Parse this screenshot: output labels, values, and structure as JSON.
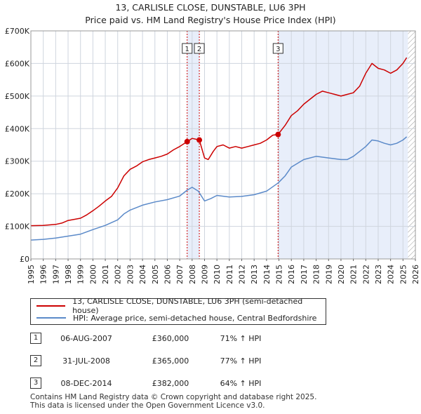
{
  "title": "13, CARLISLE CLOSE, DUNSTABLE, LU6 3PH",
  "subtitle": "Price paid vs. HM Land Registry's House Price Index (HPI)",
  "chart_data": {
    "type": "line",
    "ylim": [
      0,
      700000
    ],
    "xlim": [
      1995,
      2026
    ],
    "y_ticks": [
      {
        "value": 0,
        "label": "£0"
      },
      {
        "value": 100000,
        "label": "£100K"
      },
      {
        "value": 200000,
        "label": "£200K"
      },
      {
        "value": 300000,
        "label": "£300K"
      },
      {
        "value": 400000,
        "label": "£400K"
      },
      {
        "value": 500000,
        "label": "£500K"
      },
      {
        "value": 600000,
        "label": "£600K"
      },
      {
        "value": 700000,
        "label": "£700K"
      }
    ],
    "x_ticks": [
      "1995",
      "1996",
      "1997",
      "1998",
      "1999",
      "2000",
      "2001",
      "2002",
      "2003",
      "2004",
      "2005",
      "2006",
      "2007",
      "2008",
      "2009",
      "2010",
      "2011",
      "2012",
      "2013",
      "2014",
      "2015",
      "2016",
      "2017",
      "2018",
      "2019",
      "2020",
      "2021",
      "2022",
      "2023",
      "2024",
      "2025",
      "2026"
    ],
    "grid": true,
    "colors": {
      "property": "#cc0000",
      "hpi": "#5b8ac9",
      "shade": "#e8eefa",
      "vline": "#cc0000",
      "grid": "#cfd5de",
      "hatch": "#999999"
    },
    "shaded_ranges": [
      [
        2007.6,
        2008.58
      ],
      [
        2014.93,
        2025.4
      ]
    ],
    "hatched_from": 2025.4,
    "series": [
      {
        "name": "13, CARLISLE CLOSE, DUNSTABLE, LU6 3PH (semi-detached house)",
        "color": "#cc0000",
        "x": [
          1995.0,
          1996.0,
          1997.0,
          1997.5,
          1998.0,
          1999.0,
          1999.5,
          2000.0,
          2000.5,
          2001.0,
          2001.5,
          2002.0,
          2002.5,
          2003.0,
          2003.5,
          2004.0,
          2004.5,
          2005.0,
          2005.5,
          2006.0,
          2006.5,
          2007.0,
          2007.6,
          2008.0,
          2008.58,
          2009.0,
          2009.3,
          2009.7,
          2010.0,
          2010.5,
          2011.0,
          2011.5,
          2012.0,
          2012.5,
          2013.0,
          2013.5,
          2014.0,
          2014.5,
          2014.93,
          2015.5,
          2016.0,
          2016.5,
          2017.0,
          2017.5,
          2018.0,
          2018.5,
          2019.0,
          2019.5,
          2020.0,
          2020.5,
          2021.0,
          2021.5,
          2022.0,
          2022.5,
          2023.0,
          2023.5,
          2024.0,
          2024.5,
          2025.0,
          2025.3
        ],
        "y": [
          102000,
          103000,
          106000,
          110000,
          118000,
          125000,
          135000,
          148000,
          162000,
          178000,
          192000,
          218000,
          255000,
          275000,
          285000,
          298000,
          305000,
          310000,
          315000,
          322000,
          335000,
          345000,
          360000,
          370000,
          365000,
          310000,
          305000,
          330000,
          345000,
          350000,
          340000,
          345000,
          340000,
          345000,
          350000,
          355000,
          365000,
          380000,
          382000,
          410000,
          440000,
          455000,
          475000,
          490000,
          505000,
          515000,
          510000,
          505000,
          500000,
          505000,
          510000,
          530000,
          570000,
          600000,
          585000,
          580000,
          570000,
          580000,
          600000,
          618000
        ]
      },
      {
        "name": "HPI: Average price, semi-detached house, Central Bedfordshire",
        "color": "#5b8ac9",
        "x": [
          1995.0,
          1996.0,
          1997.0,
          1998.0,
          1999.0,
          2000.0,
          2001.0,
          2002.0,
          2002.5,
          2003.0,
          2004.0,
          2005.0,
          2006.0,
          2007.0,
          2007.6,
          2008.0,
          2008.5,
          2009.0,
          2009.5,
          2010.0,
          2011.0,
          2012.0,
          2013.0,
          2014.0,
          2014.93,
          2015.5,
          2016.0,
          2017.0,
          2018.0,
          2019.0,
          2020.0,
          2020.5,
          2021.0,
          2021.5,
          2022.0,
          2022.5,
          2023.0,
          2023.5,
          2024.0,
          2024.5,
          2025.0,
          2025.3
        ],
        "y": [
          58000,
          60000,
          64000,
          70000,
          76000,
          90000,
          103000,
          120000,
          138000,
          150000,
          165000,
          175000,
          182000,
          193000,
          211000,
          220000,
          208000,
          178000,
          185000,
          195000,
          190000,
          192000,
          197000,
          208000,
          233000,
          255000,
          282000,
          305000,
          315000,
          310000,
          305000,
          305000,
          315000,
          330000,
          345000,
          365000,
          362000,
          355000,
          350000,
          355000,
          365000,
          375000
        ]
      }
    ],
    "sales": [
      {
        "label": "1",
        "x": 2007.6,
        "y": 360000
      },
      {
        "label": "2",
        "x": 2008.58,
        "y": 365000
      },
      {
        "label": "3",
        "x": 2014.93,
        "y": 382000
      }
    ]
  },
  "legend": {
    "property_label": "13, CARLISLE CLOSE, DUNSTABLE, LU6 3PH (semi-detached house)",
    "hpi_label": "HPI: Average price, semi-detached house, Central Bedfordshire"
  },
  "sales_table": [
    {
      "num": "1",
      "date": "06-AUG-2007",
      "price": "£360,000",
      "hpi": "71% ↑ HPI"
    },
    {
      "num": "2",
      "date": "31-JUL-2008",
      "price": "£365,000",
      "hpi": "77% ↑ HPI"
    },
    {
      "num": "3",
      "date": "08-DEC-2014",
      "price": "£382,000",
      "hpi": "64% ↑ HPI"
    }
  ],
  "footer": {
    "line1": "Contains HM Land Registry data © Crown copyright and database right 2025.",
    "line2": "This data is licensed under the Open Government Licence v3.0."
  }
}
